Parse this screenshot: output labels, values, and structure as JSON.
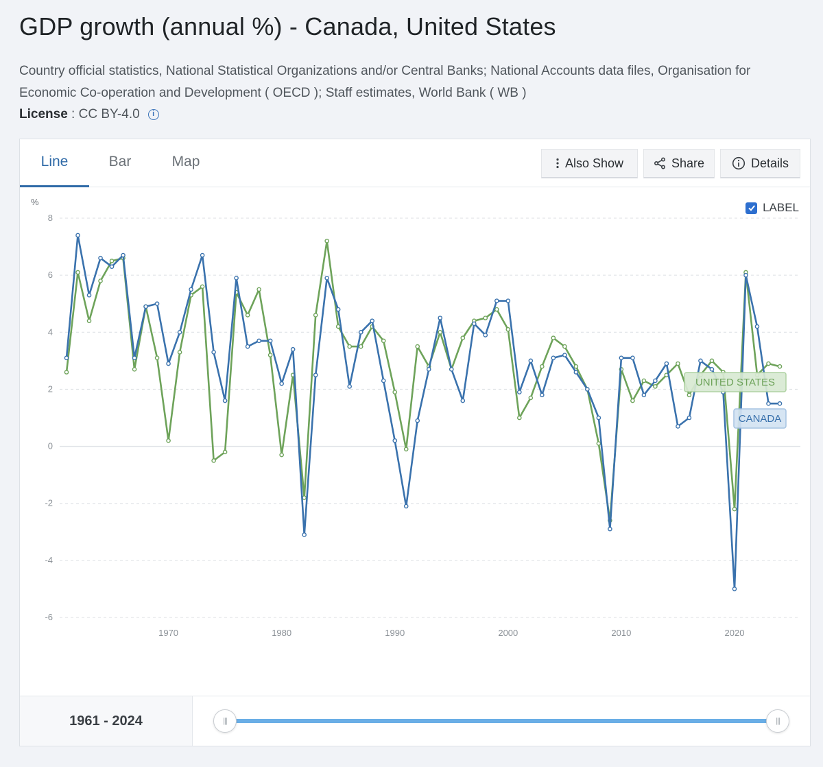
{
  "page": {
    "title": "GDP growth (annual %) - Canada, United States",
    "source": "Country official statistics, National Statistical Organizations and/or Central Banks; National Accounts data files, Organisation for Economic Co-operation and Development ( OECD ); Staff estimates, World Bank ( WB )",
    "license_label": "License",
    "license_sep": " : ",
    "license_value": "CC BY-4.0",
    "info_glyph": "i"
  },
  "tabs": [
    {
      "label": "Line",
      "active": true
    },
    {
      "label": "Bar",
      "active": false
    },
    {
      "label": "Map",
      "active": false
    }
  ],
  "toolbar": {
    "also_show": "Also Show",
    "share": "Share",
    "details": "Details"
  },
  "label_toggle": {
    "text": "LABEL",
    "checked": true
  },
  "range": {
    "text": "1961 - 2024",
    "start": 1961,
    "end": 2024
  },
  "colors": {
    "canada": "#3a72ad",
    "united_states": "#6ea35a",
    "accent": "#2f6aa7",
    "slider": "#6aaee6"
  },
  "chart_data": {
    "type": "line",
    "title": "GDP growth (annual %) - Canada, United States",
    "ylabel": "%",
    "xlabel": "",
    "ylim": [
      -6,
      8
    ],
    "yticks": [
      8,
      6,
      4,
      2,
      0,
      -2,
      -4,
      -6
    ],
    "xticks": [
      1970,
      1980,
      1990,
      2000,
      2010,
      2020
    ],
    "x": [
      1961,
      1962,
      1963,
      1964,
      1965,
      1966,
      1967,
      1968,
      1969,
      1970,
      1971,
      1972,
      1973,
      1974,
      1975,
      1976,
      1977,
      1978,
      1979,
      1980,
      1981,
      1982,
      1983,
      1984,
      1985,
      1986,
      1987,
      1988,
      1989,
      1990,
      1991,
      1992,
      1993,
      1994,
      1995,
      1996,
      1997,
      1998,
      1999,
      2000,
      2001,
      2002,
      2003,
      2004,
      2005,
      2006,
      2007,
      2008,
      2009,
      2010,
      2011,
      2012,
      2013,
      2014,
      2015,
      2016,
      2017,
      2018,
      2019,
      2020,
      2021,
      2022,
      2023,
      2024
    ],
    "series": [
      {
        "name": "Canada",
        "end_label": "CANADA",
        "values": [
          3.1,
          7.4,
          5.3,
          6.6,
          6.3,
          6.7,
          3.1,
          4.9,
          5.0,
          2.9,
          4.0,
          5.5,
          6.7,
          3.3,
          1.6,
          5.9,
          3.5,
          3.7,
          3.7,
          2.2,
          3.4,
          -3.1,
          2.5,
          5.9,
          4.8,
          2.1,
          4.0,
          4.4,
          2.3,
          0.2,
          -2.1,
          0.9,
          2.7,
          4.5,
          2.7,
          1.6,
          4.3,
          3.9,
          5.1,
          5.1,
          1.9,
          3.0,
          1.8,
          3.1,
          3.2,
          2.6,
          2.0,
          1.0,
          -2.9,
          3.1,
          3.1,
          1.8,
          2.3,
          2.9,
          0.7,
          1.0,
          3.0,
          2.7,
          1.9,
          -5.0,
          6.0,
          4.2,
          1.5,
          1.5
        ]
      },
      {
        "name": "United States",
        "end_label": "UNITED STATES",
        "values": [
          2.6,
          6.1,
          4.4,
          5.8,
          6.5,
          6.6,
          2.7,
          4.9,
          3.1,
          0.2,
          3.3,
          5.3,
          5.6,
          -0.5,
          -0.2,
          5.4,
          4.6,
          5.5,
          3.2,
          -0.3,
          2.5,
          -1.8,
          4.6,
          7.2,
          4.2,
          3.5,
          3.5,
          4.2,
          3.7,
          1.9,
          -0.1,
          3.5,
          2.8,
          4.0,
          2.7,
          3.8,
          4.4,
          4.5,
          4.8,
          4.1,
          1.0,
          1.7,
          2.8,
          3.8,
          3.5,
          2.8,
          2.0,
          0.1,
          -2.6,
          2.7,
          1.6,
          2.3,
          2.1,
          2.5,
          2.9,
          1.8,
          2.5,
          3.0,
          2.6,
          -2.2,
          6.1,
          2.5,
          2.9,
          2.8
        ]
      }
    ]
  }
}
